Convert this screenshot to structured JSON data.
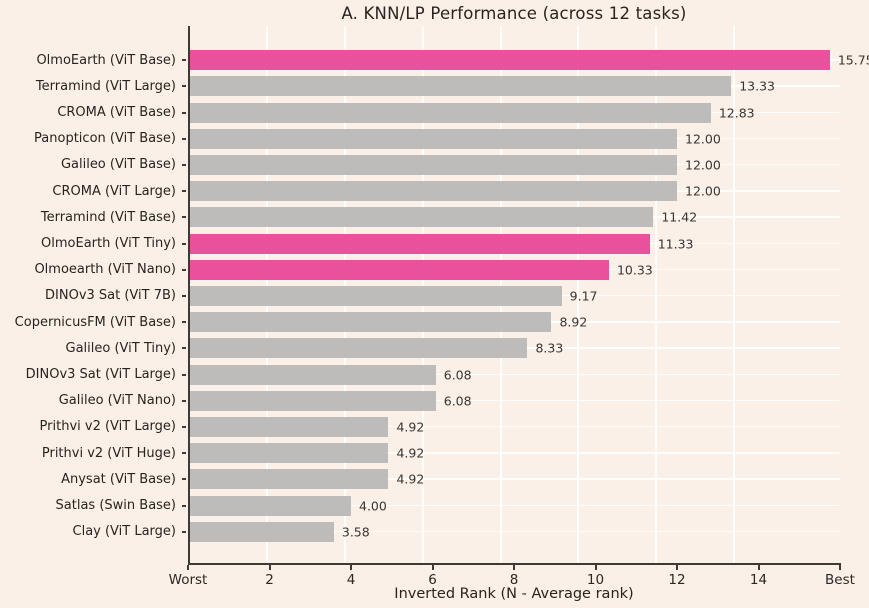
{
  "chart_data": {
    "type": "bar",
    "orientation": "horizontal",
    "title": "A. KNN/LP Performance (across 12 tasks)",
    "xlabel": "Inverted Rank (N - Average rank)",
    "xlim": [
      0,
      16
    ],
    "grid": true,
    "grid_x": [
      2,
      4,
      6,
      8,
      10,
      12,
      14
    ],
    "x_ticks": [
      {
        "value": 0,
        "label": "Worst"
      },
      {
        "value": 2,
        "label": "2"
      },
      {
        "value": 4,
        "label": "4"
      },
      {
        "value": 6,
        "label": "6"
      },
      {
        "value": 8,
        "label": "8"
      },
      {
        "value": 10,
        "label": "10"
      },
      {
        "value": 12,
        "label": "12"
      },
      {
        "value": 14,
        "label": "14"
      },
      {
        "value": 16,
        "label": "Best"
      }
    ],
    "categories": [
      "OlmoEarth (ViT Base)",
      "Terramind (ViT Large)",
      "CROMA (ViT Base)",
      "Panopticon (ViT Base)",
      "Galileo (ViT Base)",
      "CROMA (ViT Large)",
      "Terramind (ViT Base)",
      "OlmoEarth (ViT Tiny)",
      "Olmoearth (ViT Nano)",
      "DINOv3 Sat (ViT 7B)",
      "CopernicusFM (ViT Base)",
      "Galileo (ViT Tiny)",
      "DINOv3 Sat (ViT Large)",
      "Galileo (ViT Nano)",
      "Prithvi v2 (ViT Large)",
      "Prithvi v2 (ViT Huge)",
      "Anysat (ViT Base)",
      "Satlas (Swin Base)",
      "Clay (ViT Large)"
    ],
    "values": [
      15.75,
      13.33,
      12.83,
      12.0,
      12.0,
      12.0,
      11.42,
      11.33,
      10.33,
      9.17,
      8.92,
      8.33,
      6.08,
      6.08,
      4.92,
      4.92,
      4.92,
      4.0,
      3.58
    ],
    "value_labels": [
      "15.75",
      "13.33",
      "12.83",
      "12.00",
      "12.00",
      "12.00",
      "11.42",
      "11.33",
      "10.33",
      "9.17",
      "8.92",
      "8.33",
      "6.08",
      "6.08",
      "4.92",
      "4.92",
      "4.92",
      "4.00",
      "3.58"
    ],
    "highlighted_indices": [
      0,
      7,
      8
    ],
    "colors": {
      "default_bar": "#bdbcbb",
      "highlight_bar": "#e9519d",
      "background": "#faf0e7",
      "axis": "#3e3a36",
      "grid": "#ffffff"
    },
    "legend": null
  }
}
